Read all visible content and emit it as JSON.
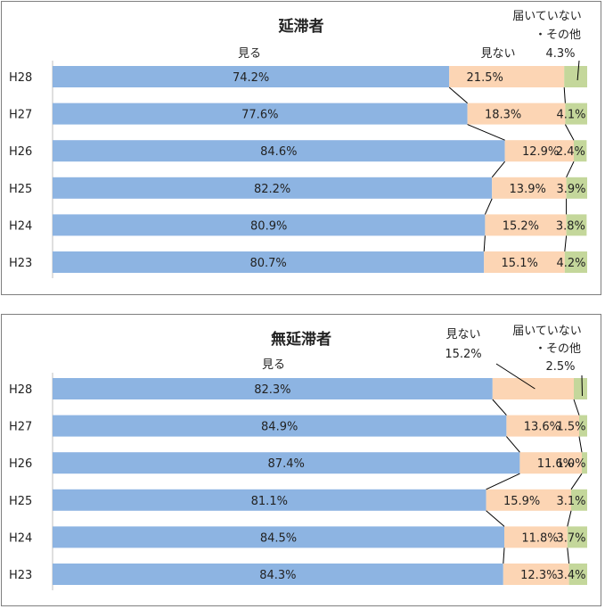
{
  "chart_data": [
    {
      "type": "bar",
      "stacked": true,
      "orientation": "horizontal",
      "title": "延滞者",
      "categories": [
        "H28",
        "H27",
        "H26",
        "H25",
        "H24",
        "H23"
      ],
      "series": [
        {
          "name": "見る",
          "values": [
            74.2,
            77.6,
            84.6,
            82.2,
            80.9,
            80.7
          ],
          "labels": [
            "74.2%",
            "77.6%",
            "84.6%",
            "82.2%",
            "80.9%",
            "80.7%"
          ],
          "color": "#8db4e2"
        },
        {
          "name": "見ない",
          "values": [
            21.5,
            18.3,
            12.9,
            13.9,
            15.2,
            15.1
          ],
          "labels": [
            "21.5%",
            "18.3%",
            "12.9%",
            "13.9%",
            "15.2%",
            "15.1%"
          ],
          "color": "#fcd5b4"
        },
        {
          "name": "届いていない・その他",
          "values": [
            4.3,
            4.1,
            2.4,
            3.9,
            3.8,
            4.2
          ],
          "labels": [
            "",
            "4.1%",
            "2.4%",
            "3.9%",
            "3.8%",
            "4.2%"
          ],
          "color": "#c4d79b"
        }
      ],
      "annotations": {
        "series1_name": "見る",
        "series2_name": "見ない",
        "series2_value": "",
        "series3_name_line1": "届いていない",
        "series3_name_line2": "・その他",
        "series3_value": "4.3%"
      },
      "xlim": [
        0,
        100
      ]
    },
    {
      "type": "bar",
      "stacked": true,
      "orientation": "horizontal",
      "title": "無延滞者",
      "categories": [
        "H28",
        "H27",
        "H26",
        "H25",
        "H24",
        "H23"
      ],
      "series": [
        {
          "name": "見る",
          "values": [
            82.3,
            84.9,
            87.4,
            81.1,
            84.5,
            84.3
          ],
          "labels": [
            "82.3%",
            "84.9%",
            "87.4%",
            "81.1%",
            "84.5%",
            "84.3%"
          ],
          "color": "#8db4e2"
        },
        {
          "name": "見ない",
          "values": [
            15.2,
            13.6,
            11.6,
            15.9,
            11.8,
            12.3
          ],
          "labels": [
            "",
            "13.6%",
            "11.6%",
            "15.9%",
            "11.8%",
            "12.3%"
          ],
          "color": "#fcd5b4"
        },
        {
          "name": "届いていない・その他",
          "values": [
            2.5,
            1.5,
            1.0,
            3.1,
            3.7,
            3.4
          ],
          "labels": [
            "",
            "1.5%",
            "1.0%",
            "3.1%",
            "3.7%",
            "3.4%"
          ],
          "color": "#c4d79b"
        }
      ],
      "annotations": {
        "series1_name": "見る",
        "series2_name": "見ない",
        "series2_value": "15.2%",
        "series3_name_line1": "届いていない",
        "series3_name_line2": "・その他",
        "series3_value": "2.5%"
      },
      "xlim": [
        0,
        100
      ]
    }
  ]
}
